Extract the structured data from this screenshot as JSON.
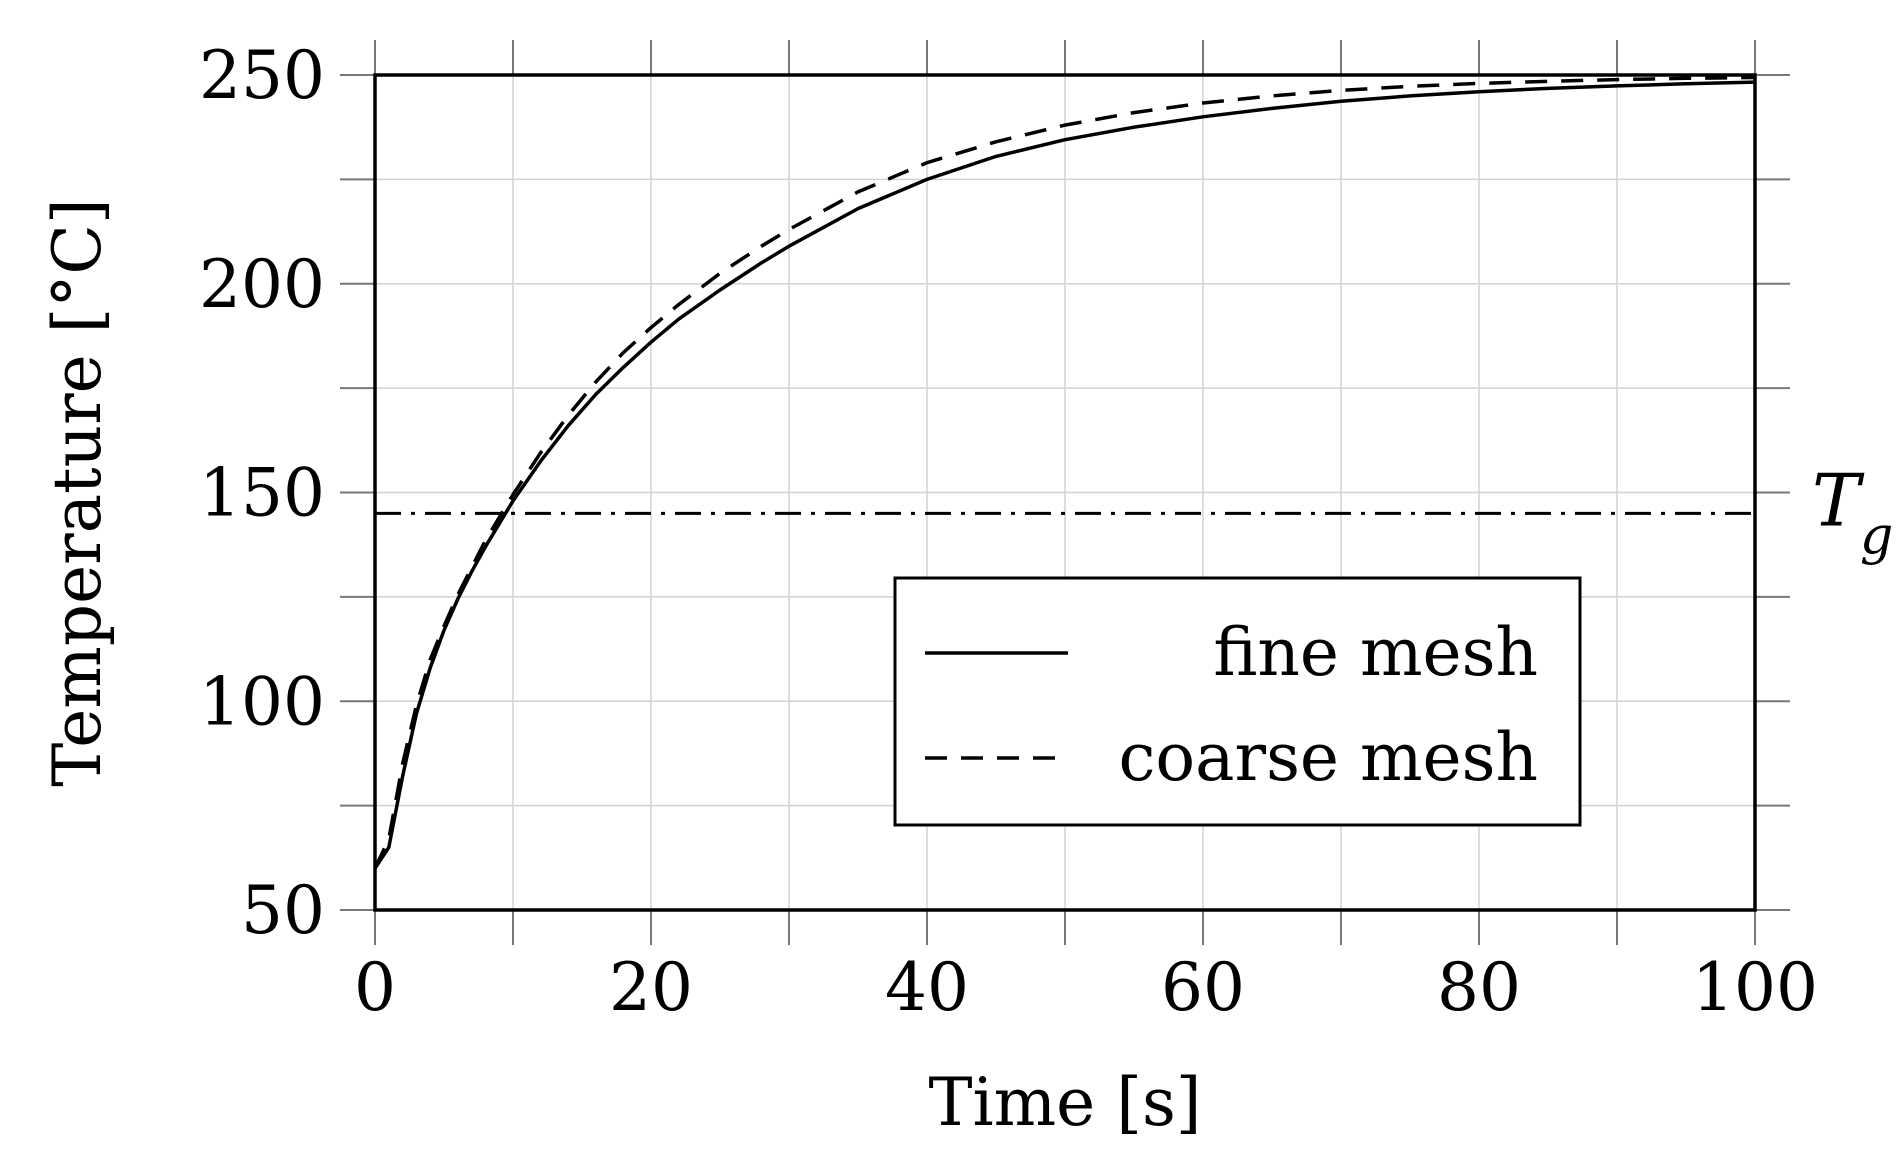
{
  "chart_data": {
    "type": "line",
    "xlabel": "Time [s]",
    "ylabel": "Temperature [°C]",
    "xlim": [
      0,
      100
    ],
    "ylim": [
      50,
      250
    ],
    "x_major_ticks": [
      0,
      20,
      40,
      60,
      80,
      100
    ],
    "x_minor_ticks": [
      10,
      30,
      50,
      70,
      90
    ],
    "y_major_ticks": [
      50,
      100,
      150,
      200,
      250
    ],
    "y_minor_ticks": [
      75,
      125,
      175,
      225
    ],
    "grid": true,
    "legend_position": "bottom-right",
    "series": [
      {
        "name": "fine mesh",
        "line_style": "solid",
        "x": [
          0,
          1,
          2,
          3,
          4,
          5,
          6,
          7,
          8,
          9,
          10,
          12,
          14,
          16,
          18,
          20,
          22,
          25,
          28,
          30,
          35,
          40,
          45,
          50,
          55,
          60,
          65,
          70,
          75,
          80,
          85,
          90,
          95,
          100
        ],
        "y": [
          60,
          65,
          82,
          97,
          108,
          117,
          124.5,
          131,
          137,
          142.5,
          148,
          157.5,
          166,
          173.5,
          180,
          186,
          191.5,
          198.5,
          205,
          209,
          218,
          225,
          230.5,
          234.5,
          237.5,
          240,
          242,
          243.7,
          245,
          246,
          246.8,
          247.4,
          247.9,
          248.3
        ]
      },
      {
        "name": "coarse mesh",
        "line_style": "dashed",
        "x": [
          0,
          1,
          2,
          3,
          4,
          5,
          6,
          7,
          8,
          9,
          10,
          12,
          14,
          16,
          18,
          20,
          22,
          25,
          28,
          30,
          35,
          40,
          45,
          50,
          55,
          60,
          65,
          70,
          75,
          80,
          85,
          90,
          95,
          100
        ],
        "y": [
          60,
          67,
          85,
          99,
          110,
          118,
          125.5,
          132,
          138.5,
          144,
          149.5,
          159.5,
          168.5,
          176.5,
          183.5,
          189.5,
          195,
          202.5,
          209,
          213,
          222,
          229,
          234,
          238,
          241,
          243.3,
          245,
          246.3,
          247.3,
          248,
          248.5,
          248.9,
          249.2,
          249.4
        ]
      }
    ],
    "reference_lines": [
      {
        "axis": "y",
        "value": 145,
        "line_style": "dash-dot",
        "label": "T",
        "label_subscript": "g"
      }
    ]
  }
}
